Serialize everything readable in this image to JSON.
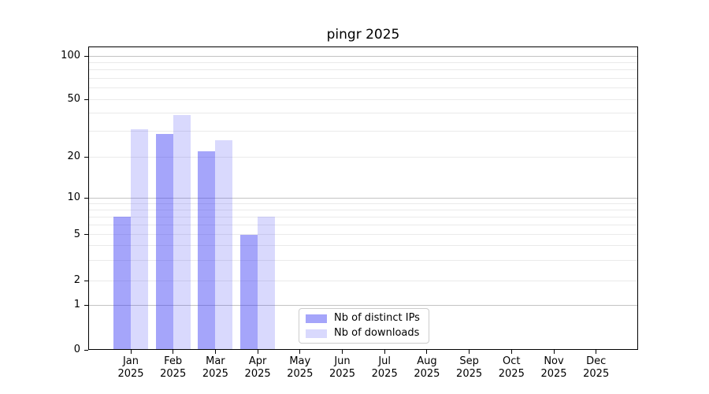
{
  "title": "pingr 2025",
  "chart_data": {
    "type": "bar",
    "title": "pingr 2025",
    "categories": [
      "Jan",
      "Feb",
      "Mar",
      "Apr",
      "May",
      "Jun",
      "Jul",
      "Aug",
      "Sep",
      "Oct",
      "Nov",
      "Dec"
    ],
    "category_year": "2025",
    "series": [
      {
        "name": "Nb of distinct IPs",
        "color": "rgba(55,55,245,0.45)",
        "values": [
          7,
          29,
          22,
          5,
          0,
          0,
          0,
          0,
          0,
          0,
          0,
          0
        ]
      },
      {
        "name": "Nb of downloads",
        "color": "rgba(55,55,245,0.19)",
        "values": [
          31,
          39,
          26,
          7,
          0,
          0,
          0,
          0,
          0,
          0,
          0,
          0
        ]
      }
    ],
    "yticks": [
      0,
      1,
      2,
      5,
      10,
      20,
      50,
      100
    ],
    "ylim": [
      0,
      110
    ],
    "yscale": "symlog-like (0,1,2,5,10,20,50,100)",
    "grid": "horizontal major and minor gridlines",
    "legend_position": "inside axes, lower center"
  },
  "colors": {
    "background": "#ffffff",
    "spine": "#000000",
    "major_grid": "#c3c3c3",
    "minor_grid": "#eaeaea",
    "bar_distinct_ips": "rgba(55,55,245,0.45)",
    "bar_downloads": "rgba(55,55,245,0.19)"
  }
}
